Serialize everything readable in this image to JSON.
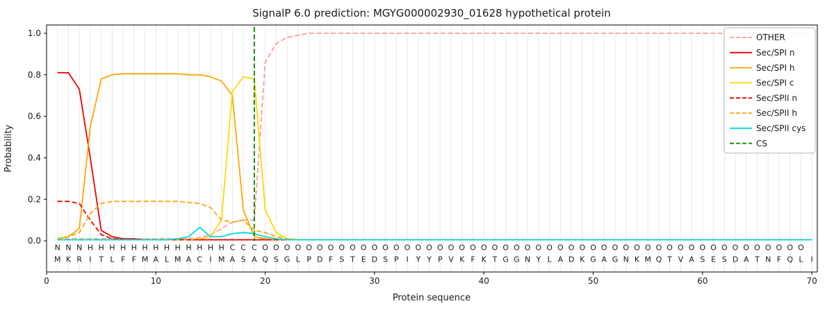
{
  "chart_data": {
    "type": "line",
    "title": "SignalP 6.0 prediction: MGYG000002930_01628 hypothetical protein",
    "xlabel": "Protein sequence",
    "ylabel": "Probability",
    "xlim": [
      0,
      70.5
    ],
    "ylim": [
      -0.15,
      1.04
    ],
    "xticks": [
      0,
      10,
      20,
      30,
      40,
      50,
      60,
      70
    ],
    "yticks": [
      0.0,
      0.2,
      0.4,
      0.6,
      0.8,
      1.0
    ],
    "grid": "vertical-line-per-residue",
    "legend_position": "upper-right",
    "n_positions": 70,
    "series": [
      {
        "name": "OTHER",
        "color": "#ff9999",
        "style": "dashed",
        "values": [
          0.01,
          0.01,
          0.01,
          0.01,
          0.01,
          0.01,
          0.01,
          0.01,
          0.01,
          0.01,
          0.01,
          0.01,
          0.01,
          0.015,
          0.03,
          0.06,
          0.09,
          0.1,
          0.1,
          0.86,
          0.95,
          0.98,
          0.99,
          1.0
        ]
      },
      {
        "name": "Sec/SPI n",
        "color": "#ee0000",
        "style": "solid",
        "values": [
          0.81,
          0.81,
          0.73,
          0.4,
          0.05,
          0.02,
          0.01,
          0.01,
          0.005
        ]
      },
      {
        "name": "Sec/SPI h",
        "color": "#ffa500",
        "style": "solid",
        "values": [
          0.01,
          0.02,
          0.06,
          0.55,
          0.78,
          0.8,
          0.805,
          0.805,
          0.805,
          0.805,
          0.805,
          0.805,
          0.8,
          0.8,
          0.79,
          0.77,
          0.7,
          0.15,
          0.02,
          0.01,
          0.005
        ]
      },
      {
        "name": "Sec/SPI c",
        "color": "#ffd700",
        "style": "solid",
        "values": [
          0.005,
          0.005,
          0.005,
          0.005,
          0.005,
          0.005,
          0.005,
          0.005,
          0.005,
          0.005,
          0.005,
          0.005,
          0.005,
          0.01,
          0.02,
          0.1,
          0.72,
          0.79,
          0.78,
          0.15,
          0.04,
          0.01,
          0.005
        ]
      },
      {
        "name": "Sec/SPII n",
        "color": "#ee0000",
        "style": "dashed",
        "values": [
          0.19,
          0.19,
          0.18,
          0.1,
          0.03,
          0.01,
          0.005
        ]
      },
      {
        "name": "Sec/SPII h",
        "color": "#ffa500",
        "style": "dashed",
        "values": [
          0.01,
          0.02,
          0.04,
          0.13,
          0.18,
          0.19,
          0.19,
          0.19,
          0.19,
          0.19,
          0.19,
          0.19,
          0.185,
          0.18,
          0.16,
          0.1,
          0.09,
          0.1,
          0.05,
          0.04,
          0.02,
          0.01,
          0.005
        ]
      },
      {
        "name": "Sec/SPII cys",
        "color": "#00dcdc",
        "style": "solid",
        "values": [
          0.005,
          0.005,
          0.005,
          0.005,
          0.005,
          0.005,
          0.005,
          0.005,
          0.005,
          0.005,
          0.005,
          0.01,
          0.02,
          0.065,
          0.02,
          0.02,
          0.035,
          0.04,
          0.035,
          0.02,
          0.01,
          0.005
        ]
      }
    ],
    "cs_line": {
      "name": "CS",
      "x": 19,
      "color": "#008000",
      "style": "dashed"
    },
    "legend": [
      "OTHER",
      "Sec/SPI n",
      "Sec/SPI h",
      "Sec/SPI c",
      "Sec/SPII n",
      "Sec/SPII h",
      "Sec/SPII cys",
      "CS"
    ],
    "annotations": {
      "region_labels": "NNNHHHHHHHHHHHHHCCCOOOOOOOOOOOOOOOOOOOOOOOOOOOOOOOOOOOOOOOOOOOOOOOOOO",
      "sequence": "MKRITLFFMALMACIMASAQSGLPDFSTEDSPIYYPVKFKTGGNYLADKGAGNKMQTVASESDATNFQLI",
      "region_colors": {
        "N": "#ee0000",
        "H": "#ffa500",
        "C": "#ffd700",
        "O": "#a6a6a6"
      },
      "sequence_color": "#1a1a1a"
    }
  }
}
